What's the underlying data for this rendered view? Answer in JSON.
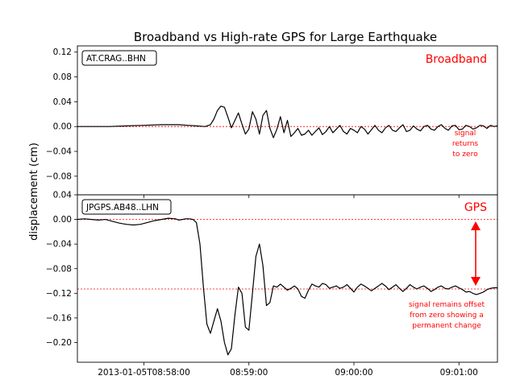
{
  "chart_data": {
    "title": "Broadband vs High-rate GPS for Large Earthquake",
    "ylabel": "displacement (cm)",
    "x_ticks": [
      "2013-01-05T08:58:00",
      "08:59:00",
      "09:00:00",
      "09:01:00"
    ],
    "x_tick_seconds": [
      0,
      60,
      120,
      180
    ],
    "xlim_seconds": [
      -38,
      202
    ],
    "panels": [
      {
        "type": "line",
        "station": "AT.CRAG..BHN",
        "label": "Broadband",
        "annotation": [
          "signal",
          "returns",
          "to zero"
        ],
        "ylim": [
          -0.11,
          0.13
        ],
        "yticks": [
          -0.08,
          -0.04,
          0.0,
          0.04,
          0.08,
          0.12
        ],
        "ytick_labels": [
          "−0.08",
          "−0.04",
          "0.00",
          "0.04",
          "0.08",
          "0.12"
        ],
        "reference_line": 0.0,
        "x": [
          -38,
          -20,
          -10,
          0,
          10,
          20,
          25,
          30,
          35,
          38,
          40,
          42,
          44,
          46,
          48,
          50,
          52,
          54,
          56,
          58,
          60,
          62,
          64,
          66,
          68,
          70,
          72,
          74,
          76,
          78,
          80,
          82,
          84,
          86,
          88,
          90,
          92,
          94,
          96,
          98,
          100,
          102,
          104,
          106,
          108,
          110,
          112,
          114,
          116,
          118,
          120,
          122,
          124,
          126,
          128,
          130,
          132,
          134,
          136,
          138,
          140,
          142,
          144,
          146,
          148,
          150,
          152,
          154,
          156,
          158,
          160,
          162,
          164,
          166,
          168,
          170,
          172,
          174,
          176,
          178,
          180,
          182,
          184,
          186,
          188,
          190,
          192,
          194,
          196,
          198,
          200,
          202
        ],
        "y": [
          0.0,
          0.0,
          0.001,
          0.002,
          0.003,
          0.003,
          0.002,
          0.001,
          0.0,
          0.003,
          0.012,
          0.026,
          0.033,
          0.031,
          0.015,
          -0.002,
          0.01,
          0.022,
          0.004,
          -0.012,
          -0.004,
          0.024,
          0.012,
          -0.012,
          0.018,
          0.026,
          -0.003,
          -0.018,
          -0.004,
          0.016,
          -0.01,
          0.01,
          -0.016,
          -0.01,
          -0.003,
          -0.014,
          -0.012,
          -0.006,
          -0.014,
          -0.008,
          -0.002,
          -0.013,
          -0.008,
          0.0,
          -0.01,
          -0.004,
          0.002,
          -0.008,
          -0.012,
          -0.003,
          -0.006,
          -0.01,
          0.0,
          -0.004,
          -0.012,
          -0.005,
          0.002,
          -0.006,
          -0.01,
          -0.002,
          0.002,
          -0.006,
          -0.008,
          -0.002,
          0.003,
          -0.008,
          -0.006,
          0.001,
          -0.004,
          -0.007,
          0.0,
          0.002,
          -0.004,
          -0.006,
          0.0,
          0.003,
          -0.003,
          -0.006,
          0.001,
          0.002,
          -0.005,
          -0.004,
          0.002,
          0.0,
          -0.004,
          -0.002,
          0.002,
          0.001,
          -0.003,
          0.002,
          0.0,
          0.001
        ]
      },
      {
        "type": "line",
        "station": "JPGPS.AB48..LHN",
        "label": "GPS",
        "annotation": [
          "signal remains offset",
          "from zero showing a",
          "permanent change"
        ],
        "ylim": [
          -0.232,
          0.04
        ],
        "yticks": [
          -0.2,
          -0.16,
          -0.12,
          -0.08,
          -0.04,
          0.0,
          0.04
        ],
        "ytick_labels": [
          "−0.20",
          "−0.16",
          "−0.12",
          "−0.08",
          "−0.04",
          "0.00",
          "0.04"
        ],
        "reference_lines": [
          0.0,
          -0.113
        ],
        "x": [
          -38,
          -34,
          -30,
          -26,
          -22,
          -18,
          -14,
          -10,
          -6,
          -2,
          2,
          6,
          10,
          14,
          18,
          20,
          22,
          24,
          26,
          28,
          30,
          32,
          34,
          36,
          38,
          40,
          42,
          44,
          46,
          48,
          50,
          52,
          54,
          56,
          58,
          60,
          62,
          64,
          66,
          68,
          70,
          72,
          74,
          76,
          78,
          80,
          82,
          84,
          86,
          88,
          90,
          92,
          94,
          96,
          98,
          100,
          102,
          104,
          106,
          108,
          110,
          112,
          114,
          116,
          118,
          120,
          122,
          124,
          126,
          128,
          130,
          132,
          134,
          136,
          138,
          140,
          142,
          144,
          146,
          148,
          150,
          152,
          154,
          156,
          158,
          160,
          162,
          164,
          166,
          168,
          170,
          172,
          174,
          176,
          178,
          180,
          182,
          184,
          186,
          188,
          190,
          192,
          194,
          196,
          198,
          200,
          202
        ],
        "y": [
          0.0,
          0.001,
          0.0,
          -0.001,
          0.0,
          -0.003,
          -0.006,
          -0.008,
          -0.009,
          -0.008,
          -0.005,
          -0.002,
          0.0,
          0.002,
          0.001,
          -0.001,
          0.0,
          0.001,
          0.001,
          0.0,
          -0.005,
          -0.04,
          -0.11,
          -0.17,
          -0.185,
          -0.165,
          -0.145,
          -0.165,
          -0.2,
          -0.22,
          -0.21,
          -0.155,
          -0.11,
          -0.12,
          -0.175,
          -0.18,
          -0.12,
          -0.06,
          -0.04,
          -0.075,
          -0.14,
          -0.135,
          -0.108,
          -0.11,
          -0.105,
          -0.11,
          -0.115,
          -0.112,
          -0.108,
          -0.113,
          -0.125,
          -0.128,
          -0.115,
          -0.105,
          -0.108,
          -0.11,
          -0.104,
          -0.106,
          -0.112,
          -0.11,
          -0.108,
          -0.112,
          -0.11,
          -0.106,
          -0.112,
          -0.118,
          -0.11,
          -0.105,
          -0.108,
          -0.112,
          -0.116,
          -0.112,
          -0.108,
          -0.104,
          -0.108,
          -0.114,
          -0.11,
          -0.106,
          -0.112,
          -0.117,
          -0.112,
          -0.106,
          -0.11,
          -0.113,
          -0.11,
          -0.108,
          -0.112,
          -0.117,
          -0.114,
          -0.11,
          -0.108,
          -0.112,
          -0.113,
          -0.11,
          -0.108,
          -0.111,
          -0.114,
          -0.118,
          -0.117,
          -0.12,
          -0.122,
          -0.12,
          -0.118,
          -0.114,
          -0.112,
          -0.111,
          -0.111
        ]
      }
    ]
  }
}
